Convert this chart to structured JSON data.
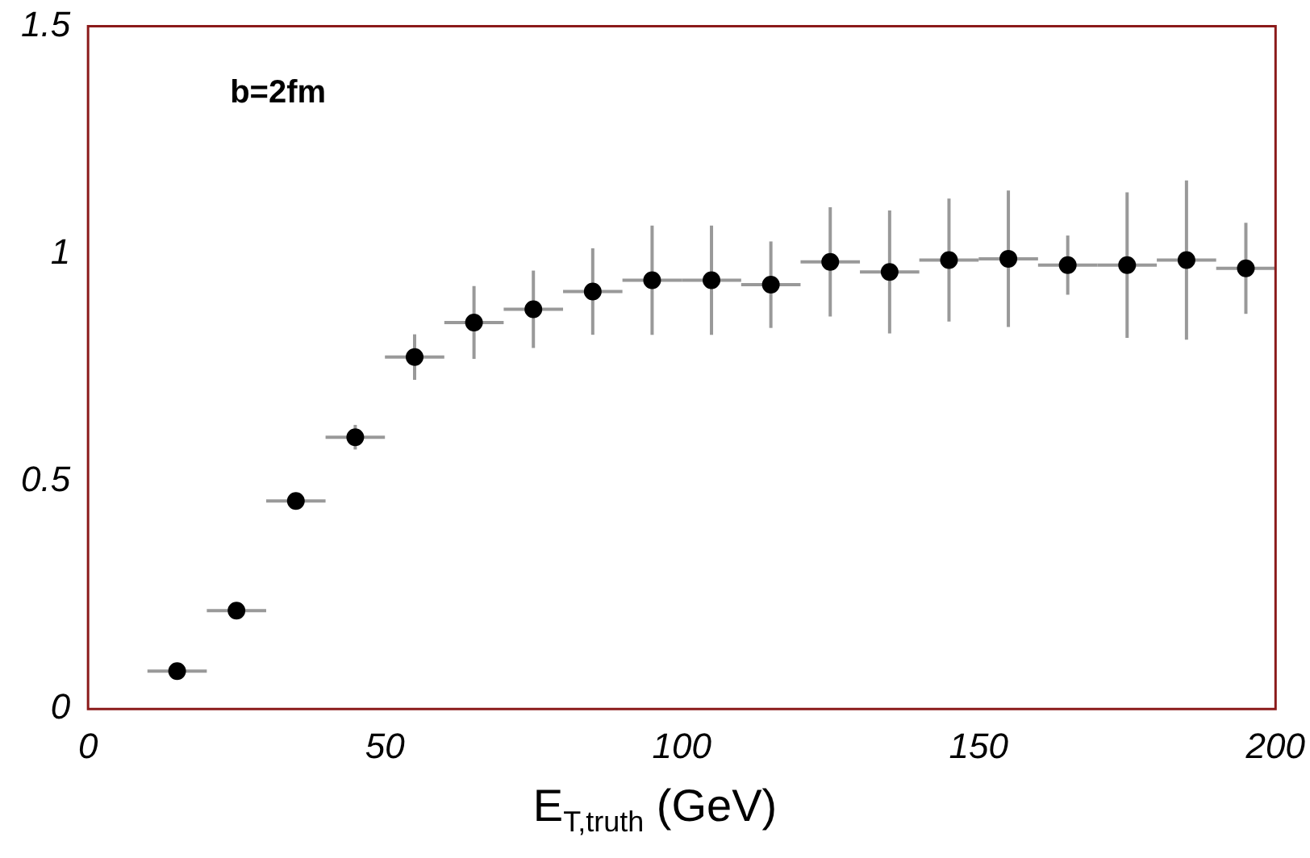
{
  "chart_data": {
    "type": "scatter",
    "xlabel": "E$_{T,truth}$ (GeV)",
    "annotations": [
      "b=2fm"
    ],
    "x": [
      15,
      25,
      35,
      45,
      55,
      65,
      75,
      85,
      95,
      105,
      115,
      125,
      135,
      145,
      155,
      165,
      175,
      185,
      195
    ],
    "values": [
      0.083,
      0.216,
      0.457,
      0.597,
      0.773,
      0.849,
      0.878,
      0.917,
      0.942,
      0.942,
      0.932,
      0.982,
      0.96,
      0.986,
      0.989,
      0.975,
      0.975,
      0.986,
      0.968
    ],
    "errors": [
      0.01,
      0.01,
      0.01,
      0.027,
      0.05,
      0.08,
      0.085,
      0.095,
      0.12,
      0.12,
      0.095,
      0.12,
      0.135,
      0.135,
      0.15,
      0.065,
      0.16,
      0.175,
      0.1
    ],
    "xerrors": [
      5,
      5,
      5,
      5,
      5,
      5,
      5,
      5,
      5,
      5,
      5,
      5,
      5,
      5,
      5,
      5,
      5,
      5,
      5
    ],
    "color": "#000000",
    "marker": "circle",
    "grid": false,
    "legend": false,
    "xlim": [
      0,
      200
    ],
    "xticks": [
      0,
      50,
      100,
      150,
      200
    ],
    "ylim": [
      0,
      1.5
    ],
    "yticks": [
      0,
      0.5,
      1,
      1.5
    ]
  }
}
